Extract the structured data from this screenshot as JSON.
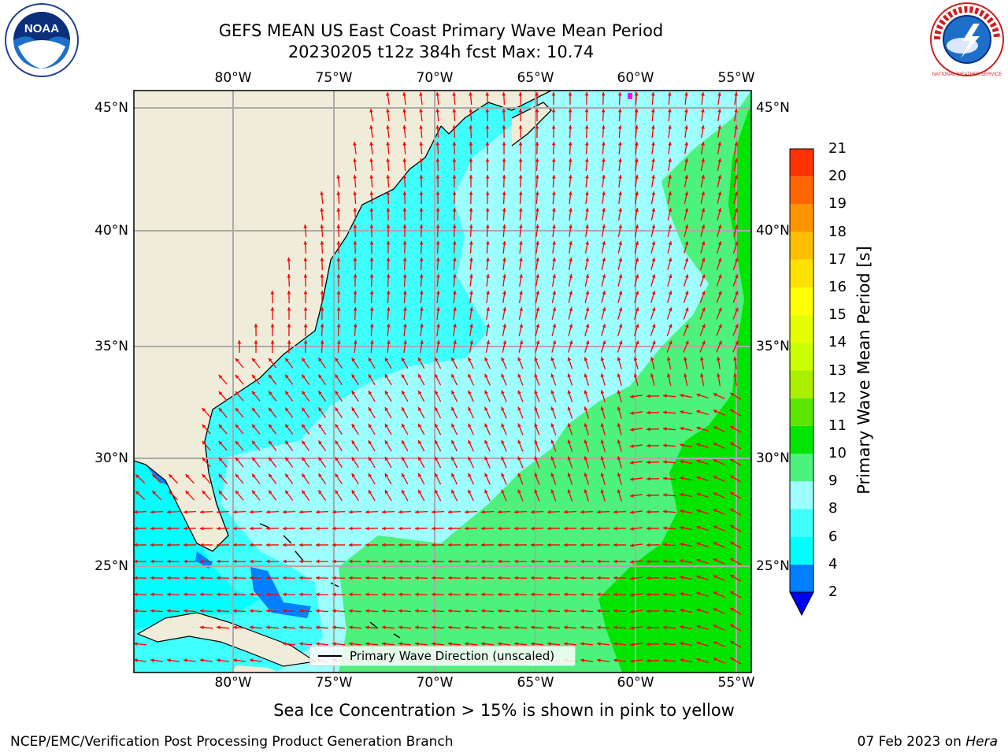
{
  "title": {
    "line1": "GEFS MEAN US East Coast Primary Wave Mean Period",
    "line2": "20230205 t12z 384h fcst   Max: 10.74"
  },
  "logos": {
    "left": "NOAA",
    "right": "NATIONAL WEATHER SERVICE"
  },
  "map": {
    "lon_labels": [
      "80°W",
      "75°W",
      "70°W",
      "65°W",
      "60°W",
      "55°W"
    ],
    "lat_labels": [
      "45°N",
      "40°N",
      "35°N",
      "30°N",
      "25°N"
    ],
    "legend_text": "Primary Wave Direction (unscaled)",
    "colors": {
      "land": "#efedd9",
      "bin_4_6": "#00ffff",
      "bin_6_8": "#40ffff",
      "bin_8_9": "#9dffff",
      "bin_9_10": "#4cf27c",
      "bin_10_11": "#00e400",
      "bin_2_4": "#0080ff",
      "arrows": "#ff0000"
    }
  },
  "colorbar": {
    "title": "Primary Wave Mean Period [s]",
    "ticks": [
      "2",
      "4",
      "6",
      "8",
      "9",
      "10",
      "11",
      "12",
      "13",
      "14",
      "15",
      "16",
      "17",
      "18",
      "19",
      "20",
      "21"
    ],
    "colors": [
      "#0080ff",
      "#00ffff",
      "#40ffff",
      "#9dffff",
      "#4cf27c",
      "#00e400",
      "#5be600",
      "#aaf000",
      "#ccff00",
      "#e6ff00",
      "#ffff00",
      "#ffe100",
      "#ffbf00",
      "#ff9400",
      "#ff6600",
      "#ff3300"
    ],
    "extend_color": "#0000ff"
  },
  "caption": "Sea Ice Concentration > 15% is shown in pink to yellow",
  "footer": {
    "left": "NCEP/EMC/Verification Post Processing Product Generation Branch",
    "right_prefix": "07 Feb 2023 on ",
    "right_italic": "Hera"
  }
}
